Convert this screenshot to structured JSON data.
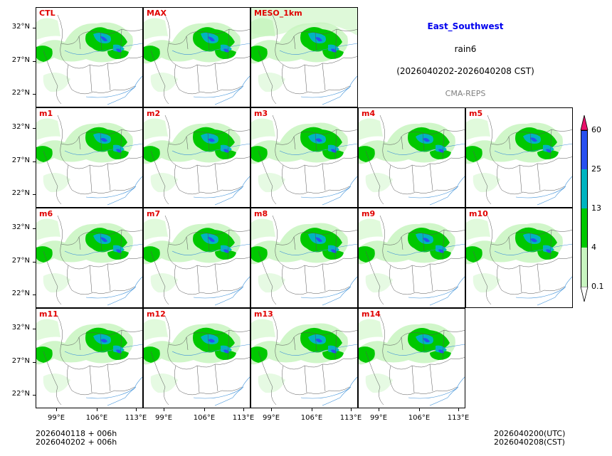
{
  "header": {
    "region": "East_Southwest",
    "variable": "rain6",
    "period": "(2026040202-2026040208 CST)",
    "model": "CMA-REPS"
  },
  "panels": [
    "CTL",
    "MAX",
    "MESO_1km",
    "m1",
    "m2",
    "m3",
    "m4",
    "m5",
    "m6",
    "m7",
    "m8",
    "m9",
    "m10",
    "m11",
    "m12",
    "m13",
    "m14"
  ],
  "axes": {
    "lat_labels": [
      "32°N",
      "27°N",
      "22°N"
    ],
    "lon_labels": [
      "99°E",
      "106°E",
      "113°E"
    ]
  },
  "colorbar": {
    "levels": [
      "0.1",
      "4",
      "13",
      "25",
      "60"
    ],
    "colors": [
      "#ffffff",
      "#c8f5c0",
      "#00c800",
      "#00b4c0",
      "#2850f0",
      "#e8106a"
    ]
  },
  "footer": {
    "left_line1": "2026040118  +  006h",
    "left_line2": "2026040202  +  006h",
    "right_line1": "2026040200(UTC)",
    "right_line2": "2026040208(CST)"
  }
}
